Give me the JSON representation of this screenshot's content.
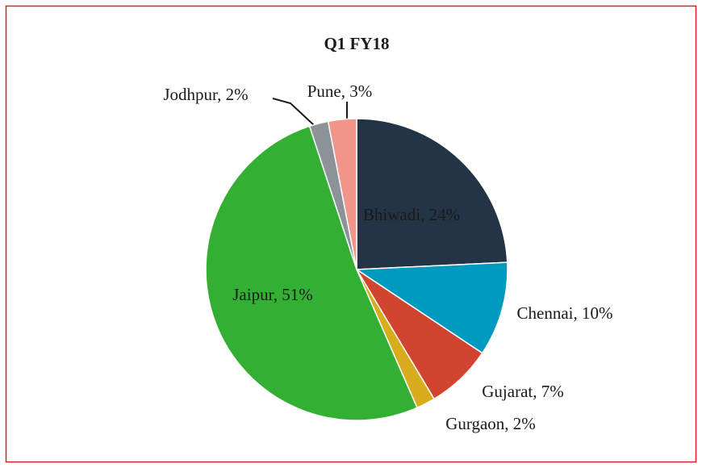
{
  "chart_data": {
    "type": "pie",
    "title": "Q1 FY18",
    "categories": [
      "Bhiwadi",
      "Chennai",
      "Gujarat",
      "Gurgaon",
      "Jaipur",
      "Jodhpur",
      "Pune"
    ],
    "values": [
      24,
      10,
      7,
      2,
      51,
      2,
      3
    ],
    "value_labels": [
      "24%",
      "10%",
      "7%",
      "2%",
      "51%",
      "2%",
      "3%"
    ],
    "label_separator": ", ",
    "colors": [
      "#243447",
      "#0099c0",
      "#d04430",
      "#d8ac1c",
      "#33b033",
      "#8c9298",
      "#f0948c"
    ]
  }
}
